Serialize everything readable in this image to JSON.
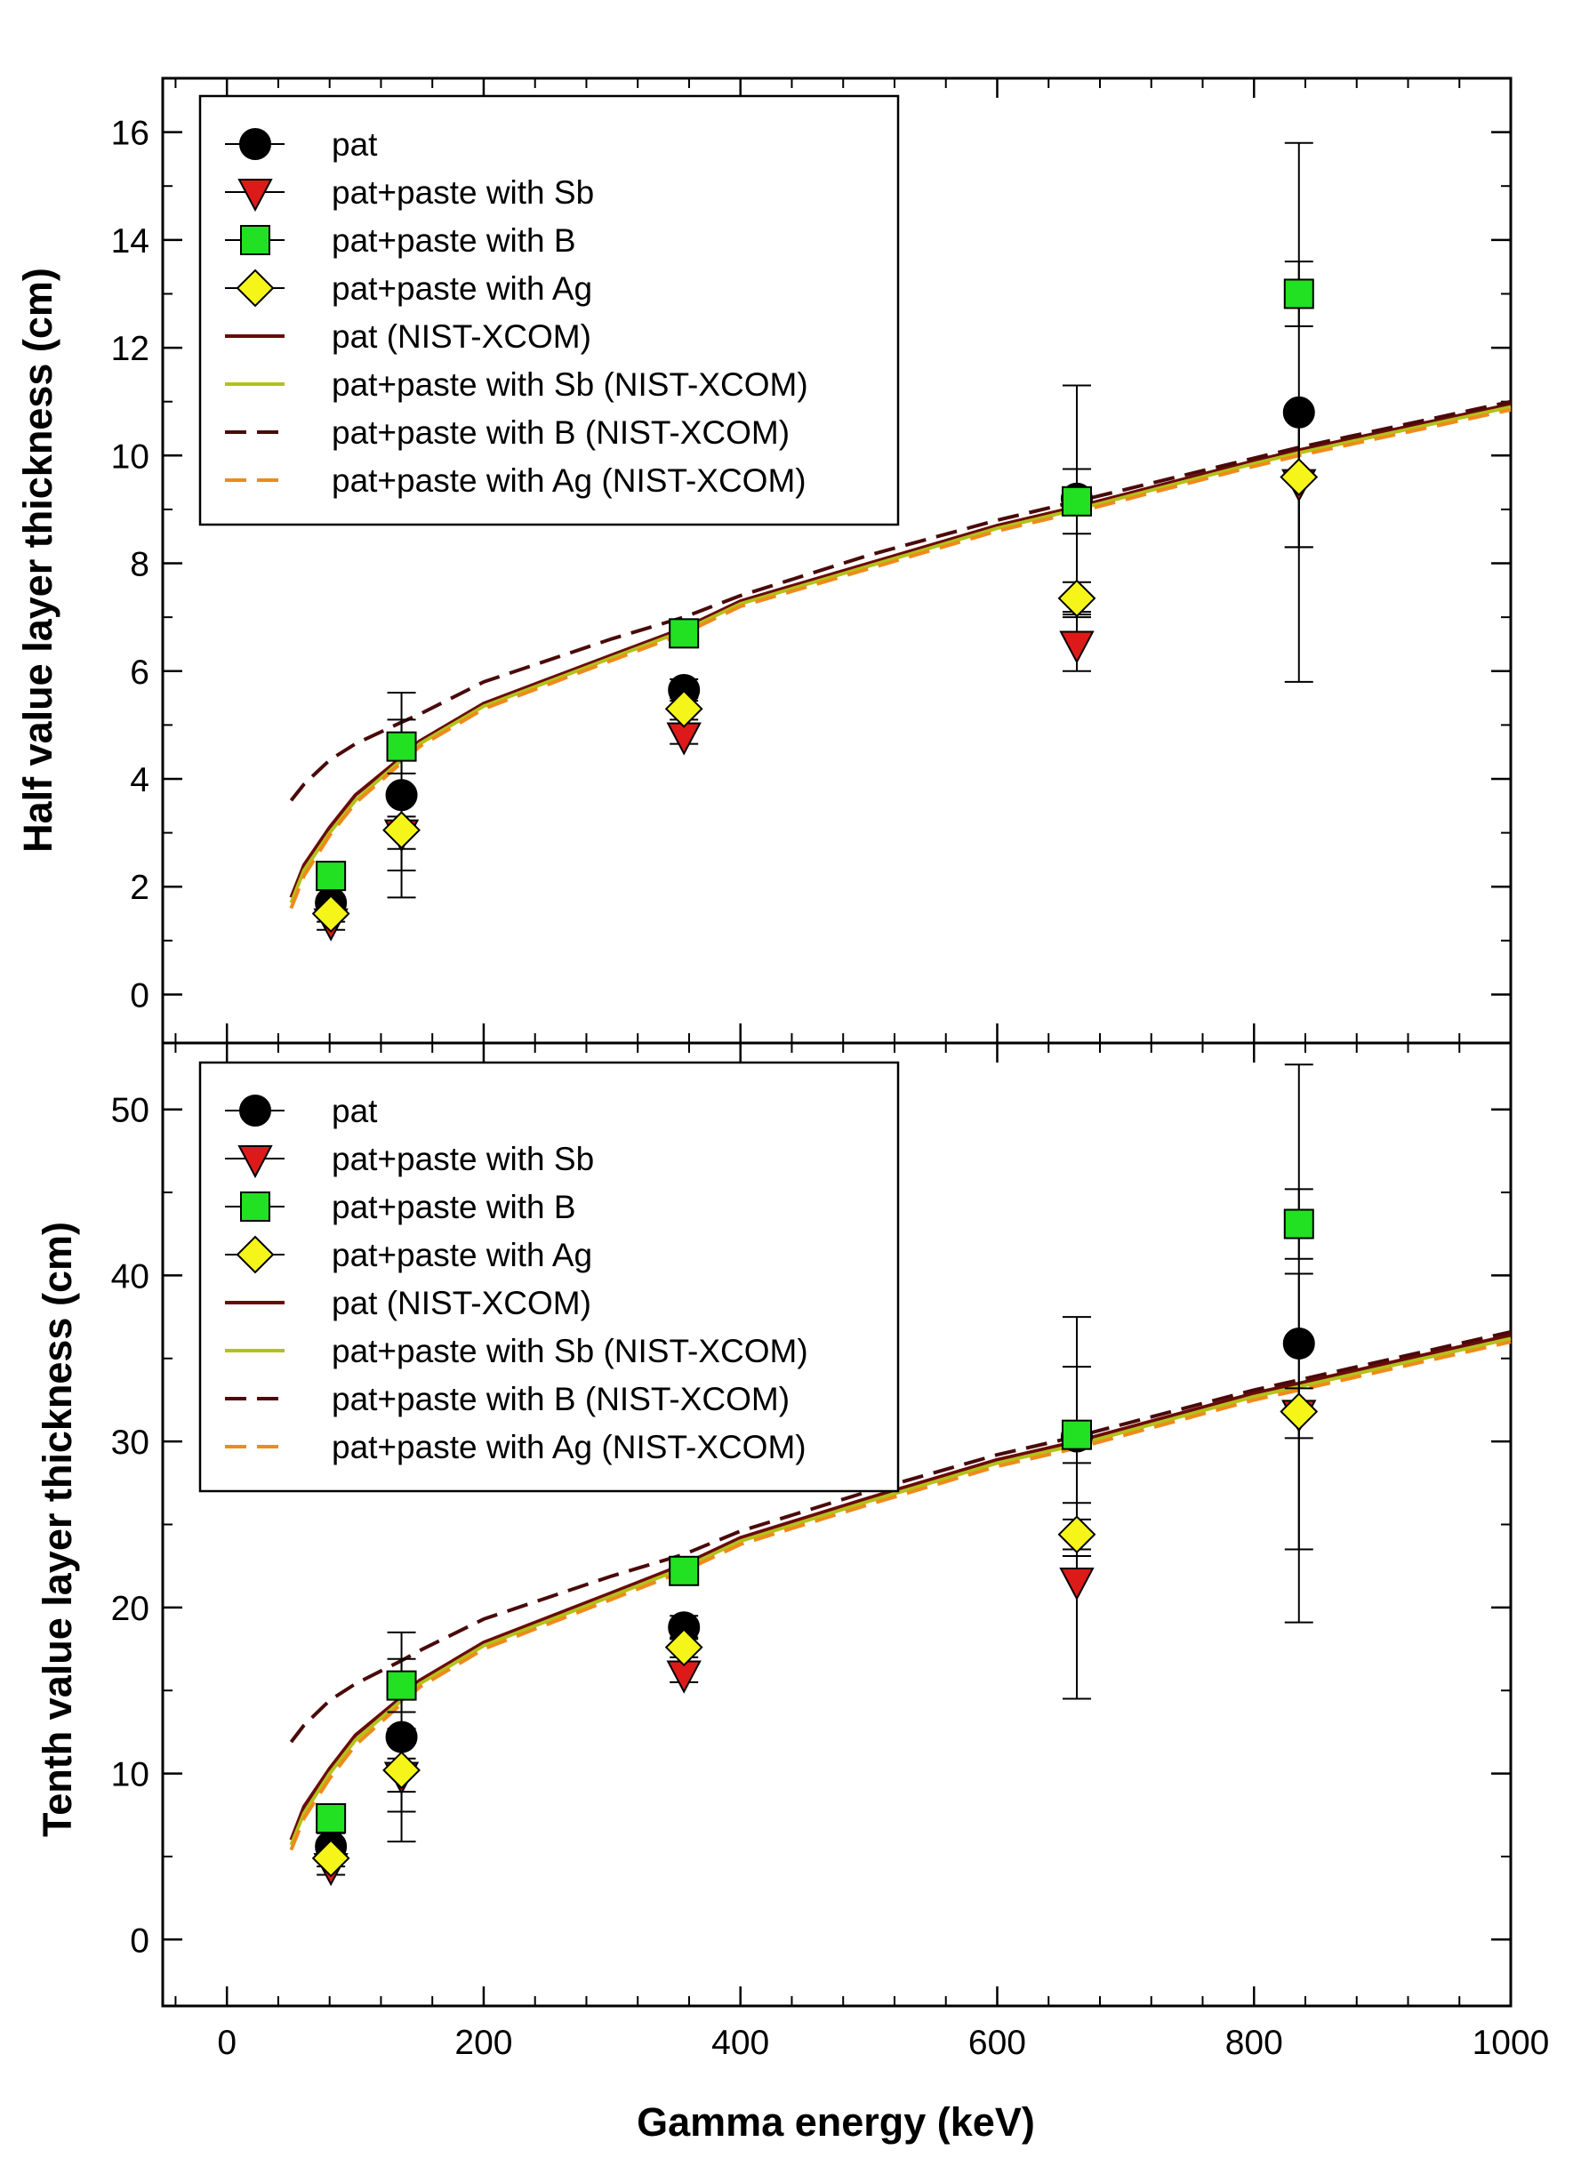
{
  "chart_data": {
    "type": "scatter",
    "shared_x": {
      "xlabel": "Gamma energy (keV)",
      "xlim": [
        -50,
        1000
      ],
      "xticks": [
        0,
        200,
        400,
        600,
        800,
        1000
      ],
      "xtick_labels": [
        "0",
        "200",
        "400",
        "600",
        "800",
        "1000"
      ]
    },
    "colors": {
      "pat": "#000000",
      "sb": "#dd1a1a",
      "b": "#22e022",
      "ag": "#f5f51a",
      "line_pat": "#6b0a0a",
      "line_sb": "#b3c21a",
      "line_b": "#4a0a0a",
      "line_ag": "#f08a1a"
    },
    "panels": [
      {
        "id": "hvl",
        "ylabel": "Half value layer thickness (cm)",
        "ylim": [
          -0.9,
          17
        ],
        "yticks": [
          0,
          2,
          4,
          6,
          8,
          10,
          12,
          14,
          16
        ],
        "ytick_labels": [
          "0",
          "2",
          "4",
          "6",
          "8",
          "10",
          "12",
          "14",
          "16"
        ],
        "legend": [
          "pat",
          "pat+paste with Sb",
          "pat+paste with B",
          "pat+paste with Ag",
          "pat (NIST-XCOM)",
          "pat+paste with Sb (NIST-XCOM)",
          "pat+paste with B (NIST-XCOM)",
          "pat+paste with Ag (NIST-XCOM)"
        ],
        "x": [
          81,
          136,
          356,
          662,
          835
        ],
        "series": [
          {
            "name": "pat",
            "marker": "circle",
            "values": [
              1.7,
              3.7,
              5.65,
              9.2,
              10.8
            ],
            "errors": [
              0.25,
              1.9,
              0.2,
              2.1,
              5.0
            ]
          },
          {
            "name": "pat+paste with Sb",
            "marker": "triangle-down",
            "values": [
              1.35,
              3.0,
              4.8,
              6.5,
              9.5
            ],
            "errors": [
              0.15,
              0.3,
              0.15,
              0.5,
              1.2
            ]
          },
          {
            "name": "pat+paste with B",
            "marker": "square",
            "values": [
              2.2,
              4.6,
              6.7,
              9.15,
              13.0
            ],
            "errors": [
              0.25,
              0.5,
              0.2,
              0.6,
              0.6
            ]
          },
          {
            "name": "pat+paste with Ag",
            "marker": "diamond",
            "values": [
              1.5,
              3.05,
              5.3,
              7.35,
              9.6
            ],
            "errors": [
              0.15,
              0.75,
              0.2,
              0.3,
              1.3
            ]
          }
        ],
        "lines": [
          {
            "name": "pat (NIST-XCOM)",
            "style": "solid",
            "x": [
              50,
              60,
              80,
              100,
              136,
              150,
              200,
              300,
              356,
              400,
              500,
              600,
              662,
              800,
              835,
              1000
            ],
            "y": [
              1.8,
              2.4,
              3.1,
              3.7,
              4.4,
              4.7,
              5.4,
              6.3,
              6.8,
              7.3,
              8.0,
              8.7,
              9.05,
              9.9,
              10.1,
              10.95
            ]
          },
          {
            "name": "pat+paste with Sb (NIST-XCOM)",
            "style": "solid",
            "x": [
              50,
              60,
              80,
              100,
              136,
              150,
              200,
              300,
              356,
              400,
              500,
              600,
              662,
              800,
              835,
              1000
            ],
            "y": [
              1.7,
              2.3,
              3.0,
              3.6,
              4.35,
              4.65,
              5.35,
              6.25,
              6.75,
              7.25,
              7.95,
              8.65,
              9.0,
              9.85,
              10.05,
              10.9
            ]
          },
          {
            "name": "pat+paste with B (NIST-XCOM)",
            "style": "dashed",
            "x": [
              50,
              60,
              80,
              100,
              136,
              150,
              200,
              300,
              356,
              400,
              500,
              600,
              662,
              800,
              835,
              1000
            ],
            "y": [
              3.6,
              3.9,
              4.35,
              4.65,
              5.05,
              5.2,
              5.8,
              6.6,
              7.0,
              7.4,
              8.15,
              8.8,
              9.15,
              9.95,
              10.15,
              11.0
            ]
          },
          {
            "name": "pat+paste with Ag (NIST-XCOM)",
            "style": "dashed",
            "x": [
              50,
              60,
              80,
              100,
              136,
              150,
              200,
              300,
              356,
              400,
              500,
              600,
              662,
              800,
              835,
              1000
            ],
            "y": [
              1.6,
              2.2,
              2.95,
              3.55,
              4.3,
              4.6,
              5.3,
              6.2,
              6.7,
              7.2,
              7.9,
              8.6,
              8.95,
              9.8,
              10.0,
              10.85
            ]
          }
        ]
      },
      {
        "id": "tvl",
        "ylabel": "Tenth value layer thickness (cm)",
        "ylim": [
          -4,
          54
        ],
        "yticks": [
          0,
          10,
          20,
          30,
          40,
          50
        ],
        "ytick_labels": [
          "0",
          "10",
          "20",
          "30",
          "40",
          "50"
        ],
        "legend": [
          "pat",
          "pat+paste with Sb",
          "pat+paste with B",
          "pat+paste with Ag",
          "pat (NIST-XCOM)",
          "pat+paste with Sb (NIST-XCOM)",
          "pat+paste with B (NIST-XCOM)",
          "pat+paste with Ag (NIST-XCOM)"
        ],
        "x": [
          81,
          136,
          356,
          662,
          835
        ],
        "series": [
          {
            "name": "pat",
            "marker": "circle",
            "values": [
              5.6,
              12.2,
              18.8,
              30.3,
              35.9
            ],
            "errors": [
              0.8,
              6.3,
              0.7,
              7.2,
              16.8
            ]
          },
          {
            "name": "pat+paste with Sb",
            "marker": "triangle-down",
            "values": [
              4.4,
              9.9,
              16.0,
              21.6,
              31.7
            ],
            "errors": [
              0.5,
              1.0,
              0.5,
              7.1,
              1.5
            ]
          },
          {
            "name": "pat+paste with B",
            "marker": "square",
            "values": [
              7.3,
              15.3,
              22.2,
              30.4,
              43.1
            ],
            "errors": [
              0.8,
              1.6,
              0.6,
              4.1,
              2.1
            ]
          },
          {
            "name": "pat+paste with Ag",
            "marker": "diamond",
            "values": [
              4.9,
              10.2,
              17.6,
              24.4,
              31.8
            ],
            "errors": [
              0.5,
              2.5,
              0.6,
              0.9,
              8.3
            ]
          }
        ],
        "lines": [
          {
            "name": "pat (NIST-XCOM)",
            "style": "solid",
            "x": [
              50,
              60,
              80,
              100,
              136,
              150,
              200,
              300,
              356,
              400,
              500,
              600,
              662,
              800,
              835,
              1000
            ],
            "y": [
              6.0,
              8.0,
              10.3,
              12.3,
              14.6,
              15.6,
              17.9,
              20.9,
              22.6,
              24.2,
              26.6,
              28.9,
              30.0,
              32.9,
              33.5,
              36.4
            ]
          },
          {
            "name": "pat+paste with Sb (NIST-XCOM)",
            "style": "solid",
            "x": [
              50,
              60,
              80,
              100,
              136,
              150,
              200,
              300,
              356,
              400,
              500,
              600,
              662,
              800,
              835,
              1000
            ],
            "y": [
              5.7,
              7.6,
              10.0,
              12.0,
              14.4,
              15.4,
              17.7,
              20.7,
              22.4,
              24.0,
              26.4,
              28.7,
              29.8,
              32.7,
              33.3,
              36.2
            ]
          },
          {
            "name": "pat+paste with B (NIST-XCOM)",
            "style": "dashed",
            "x": [
              50,
              60,
              80,
              100,
              136,
              150,
              200,
              300,
              356,
              400,
              500,
              600,
              662,
              800,
              835,
              1000
            ],
            "y": [
              11.9,
              12.9,
              14.4,
              15.4,
              16.8,
              17.4,
              19.3,
              21.9,
              23.2,
              24.6,
              27.0,
              29.2,
              30.3,
              33.1,
              33.7,
              36.6
            ]
          },
          {
            "name": "pat+paste with Ag (NIST-XCOM)",
            "style": "dashed",
            "x": [
              50,
              60,
              80,
              100,
              136,
              150,
              200,
              300,
              356,
              400,
              500,
              600,
              662,
              800,
              835,
              1000
            ],
            "y": [
              5.4,
              7.3,
              9.7,
              11.7,
              14.2,
              15.2,
              17.5,
              20.5,
              22.2,
              23.8,
              26.2,
              28.5,
              29.6,
              32.5,
              33.1,
              36.0
            ]
          }
        ]
      }
    ]
  }
}
